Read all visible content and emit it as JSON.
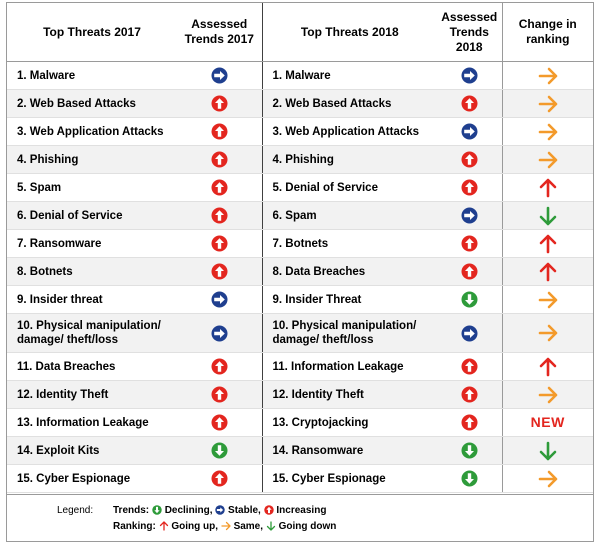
{
  "headers": {
    "top2017": "Top Threats 2017",
    "trend2017": "Assessed Trends 2017",
    "top2018": "Top Threats 2018",
    "trend2018": "Assessed Trends 2018",
    "change": "Change in ranking"
  },
  "rows": [
    {
      "t2017": "1. Malware",
      "tr2017": "stable",
      "t2018": "1. Malware",
      "tr2018": "stable",
      "chg": "same"
    },
    {
      "t2017": "2. Web Based Attacks",
      "tr2017": "increasing",
      "t2018": "2. Web Based Attacks",
      "tr2018": "increasing",
      "chg": "same"
    },
    {
      "t2017": "3. Web Application Attacks",
      "tr2017": "increasing",
      "t2018": "3. Web Application Attacks",
      "tr2018": "stable",
      "chg": "same"
    },
    {
      "t2017": "4. Phishing",
      "tr2017": "increasing",
      "t2018": "4. Phishing",
      "tr2018": "increasing",
      "chg": "same"
    },
    {
      "t2017": "5. Spam",
      "tr2017": "increasing",
      "t2018": "5. Denial of Service",
      "tr2018": "increasing",
      "chg": "up"
    },
    {
      "t2017": "6. Denial of Service",
      "tr2017": "increasing",
      "t2018": "6. Spam",
      "tr2018": "stable",
      "chg": "down"
    },
    {
      "t2017": "7. Ransomware",
      "tr2017": "increasing",
      "t2018": "7. Botnets",
      "tr2018": "increasing",
      "chg": "up"
    },
    {
      "t2017": "8. Botnets",
      "tr2017": "increasing",
      "t2018": "8. Data Breaches",
      "tr2018": "increasing",
      "chg": "up"
    },
    {
      "t2017": "9. Insider threat",
      "tr2017": "stable",
      "t2018": "9. Insider Threat",
      "tr2018": "declining",
      "chg": "same"
    },
    {
      "t2017": "10. Physical manipulation/ damage/ theft/loss",
      "tr2017": "stable",
      "t2018": "10. Physical manipulation/ damage/ theft/loss",
      "tr2018": "stable",
      "chg": "same"
    },
    {
      "t2017": "11. Data Breaches",
      "tr2017": "increasing",
      "t2018": "11. Information Leakage",
      "tr2018": "increasing",
      "chg": "up"
    },
    {
      "t2017": "12. Identity Theft",
      "tr2017": "increasing",
      "t2018": "12. Identity Theft",
      "tr2018": "increasing",
      "chg": "same"
    },
    {
      "t2017": "13. Information Leakage",
      "tr2017": "increasing",
      "t2018": "13. Cryptojacking",
      "tr2018": "increasing",
      "chg": "new",
      "chg_text": "NEW"
    },
    {
      "t2017": "14. Exploit Kits",
      "tr2017": "declining",
      "t2018": "14. Ransomware",
      "tr2018": "declining",
      "chg": "down"
    },
    {
      "t2017": "15. Cyber Espionage",
      "tr2017": "increasing",
      "t2018": "15. Cyber Espionage",
      "tr2018": "declining",
      "chg": "same"
    }
  ],
  "legend": {
    "label": "Legend:",
    "trends_label": "Trends:",
    "declining": "Declining,",
    "stable": "Stable,",
    "increasing": "Increasing",
    "ranking_label": "Ranking:",
    "going_up": "Going up,",
    "same": "Same,",
    "going_down": "Going down"
  },
  "colors": {
    "increasing": "#e3261f",
    "stable": "#1f3f8f",
    "declining": "#2e9b3a",
    "up_arrow": "#e3261f",
    "same_arrow": "#f39a2b",
    "down_arrow": "#2e9b3a"
  }
}
